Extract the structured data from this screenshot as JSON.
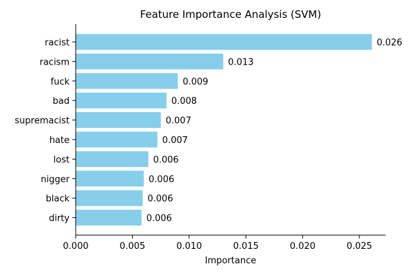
{
  "chart_data": {
    "type": "bar",
    "orientation": "horizontal",
    "title": "Feature Importance Analysis (SVM)",
    "xlabel": "Importance",
    "ylabel": "",
    "xlim": [
      0,
      0.0273
    ],
    "xticks": [
      0.0,
      0.005,
      0.01,
      0.015,
      0.02,
      0.025
    ],
    "xtick_labels": [
      "0.000",
      "0.005",
      "0.010",
      "0.015",
      "0.020",
      "0.025"
    ],
    "grid": false,
    "legend": "none",
    "bar_color": "#87ceeb",
    "categories": [
      "racist",
      "racism",
      "fuck",
      "bad",
      "supremacist",
      "hate",
      "lost",
      "nigger",
      "black",
      "dirty"
    ],
    "values": [
      0.0261,
      0.013,
      0.009,
      0.008,
      0.0075,
      0.0072,
      0.0064,
      0.006,
      0.0059,
      0.0058
    ],
    "value_labels": [
      "0.026",
      "0.013",
      "0.009",
      "0.008",
      "0.007",
      "0.007",
      "0.006",
      "0.006",
      "0.006",
      "0.006"
    ]
  }
}
